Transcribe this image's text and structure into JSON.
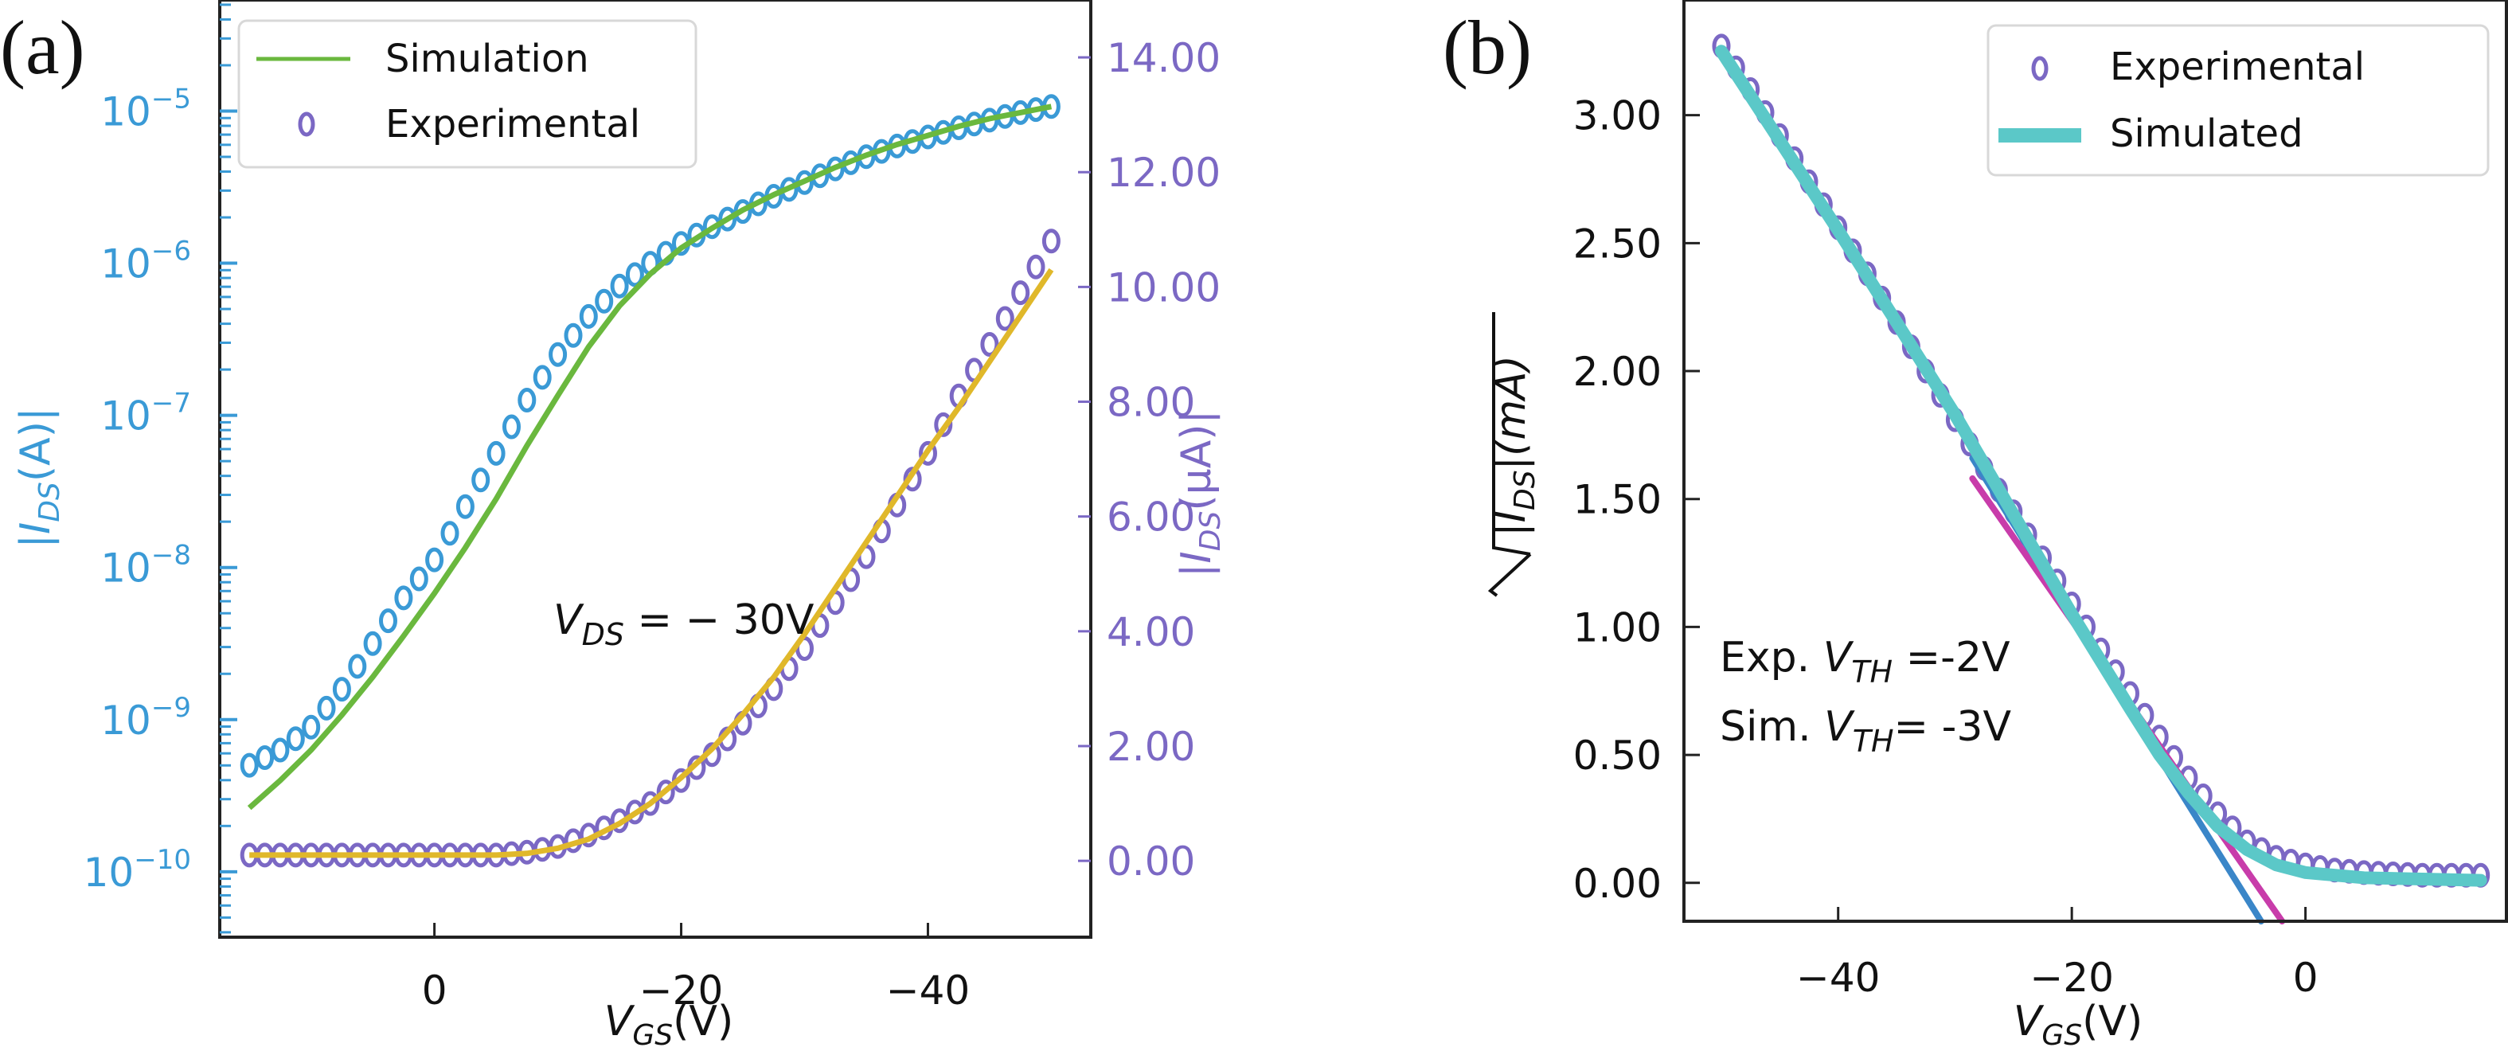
{
  "chart_data": [
    {
      "id": "a",
      "type": "line",
      "panel_label": "(a)",
      "xlabel": "V_GS(V)",
      "xlabel_main": "V",
      "xlabel_sub": "GS",
      "xlabel_unit": "(V)",
      "xlim": [
        17.4,
        -53.2
      ],
      "xticks": [
        0,
        -20,
        -40
      ],
      "xtick_labels": [
        "0",
        "−20",
        "−40"
      ],
      "y_left": {
        "label": "|I_DS(A)|",
        "label_main": "|I",
        "label_sub": "DS",
        "label_unit": "(A)|",
        "scale": "log",
        "ylim_log10": [
          -10.43,
          -4.27
        ],
        "tick_exponents": [
          -10,
          -9,
          -8,
          -7,
          -6,
          -5
        ],
        "tick_base": "10",
        "color": "#3a9ad6"
      },
      "y_right": {
        "label": "|I_DS(μA)|",
        "label_main": "|I",
        "label_sub": "DS",
        "label_unit": "(μA)|",
        "scale": "linear",
        "ylim": [
          -1.33,
          15.0
        ],
        "ticks": [
          0,
          2,
          4,
          6,
          8,
          10,
          12,
          14
        ],
        "tick_labels": [
          "0.00",
          "2.00",
          "4.00",
          "6.00",
          "8.00",
          "10.00",
          "12.00",
          "14.00"
        ],
        "color": "#7b68c4"
      },
      "legend": {
        "position": "upper-left",
        "entries": [
          {
            "label": "Simulation",
            "kind": "line",
            "color": "#6ab83e"
          },
          {
            "label": "Experimental",
            "kind": "marker",
            "color": "#7b68c4"
          }
        ]
      },
      "annotation": {
        "main": "V",
        "sub": "DS",
        "rest": " = − 30V",
        "x": 11,
        "y_log10": -8.55
      },
      "x": [
        15,
        12.5,
        10,
        7.5,
        5,
        2.5,
        0,
        -2.5,
        -5,
        -7.5,
        -10,
        -12.5,
        -15,
        -17.5,
        -20,
        -22.5,
        -25,
        -27.5,
        -30,
        -32.5,
        -35,
        -37.5,
        -40,
        -42.5,
        -45,
        -47.5,
        -50
      ],
      "series": [
        {
          "name": "Experimental (log)",
          "axis": "left",
          "kind": "marker",
          "color": "#3a9ad6",
          "log10_values": [
            -9.3,
            -9.2,
            -9.05,
            -8.8,
            -8.5,
            -8.2,
            -7.95,
            -7.6,
            -7.25,
            -6.9,
            -6.6,
            -6.35,
            -6.15,
            -6.0,
            -5.87,
            -5.76,
            -5.66,
            -5.56,
            -5.47,
            -5.38,
            -5.3,
            -5.23,
            -5.17,
            -5.11,
            -5.06,
            -5.01,
            -4.97
          ]
        },
        {
          "name": "Simulation (log)",
          "axis": "left",
          "kind": "line",
          "color": "#6ab83e",
          "log10_values": [
            -9.58,
            -9.4,
            -9.2,
            -8.97,
            -8.72,
            -8.45,
            -8.17,
            -7.87,
            -7.55,
            -7.2,
            -6.87,
            -6.55,
            -6.28,
            -6.07,
            -5.9,
            -5.77,
            -5.65,
            -5.55,
            -5.46,
            -5.37,
            -5.29,
            -5.22,
            -5.16,
            -5.1,
            -5.05,
            -5.01,
            -4.97
          ]
        },
        {
          "name": "Experimental (linear)",
          "axis": "right",
          "kind": "marker",
          "color": "#7b68c4",
          "values": [
            0.1,
            0.1,
            0.1,
            0.1,
            0.1,
            0.1,
            0.1,
            0.1,
            0.1,
            0.15,
            0.25,
            0.45,
            0.7,
            1.0,
            1.4,
            1.85,
            2.4,
            3.0,
            3.7,
            4.5,
            5.3,
            6.2,
            7.1,
            8.1,
            9.0,
            9.9,
            10.8
          ]
        },
        {
          "name": "Simulation (linear)",
          "axis": "right",
          "kind": "line",
          "color": "#e0b82a",
          "values": [
            0.1,
            0.1,
            0.1,
            0.1,
            0.1,
            0.1,
            0.1,
            0.1,
            0.1,
            0.13,
            0.22,
            0.38,
            0.65,
            1.0,
            1.45,
            1.95,
            2.55,
            3.2,
            3.95,
            4.75,
            5.55,
            6.35,
            7.15,
            7.9,
            8.7,
            9.5,
            10.3
          ]
        }
      ]
    },
    {
      "id": "b",
      "type": "line",
      "panel_label": "(b)",
      "xlabel": "V_GS(V)",
      "xlabel_main": "V",
      "xlabel_sub": "GS",
      "xlabel_unit": "(V)",
      "xlim": [
        -53.2,
        17.2
      ],
      "xticks": [
        -40,
        -20,
        0
      ],
      "xtick_labels": [
        "−40",
        "−20",
        "0"
      ],
      "ylabel": "sqrt(|I_DS|(mA))",
      "ylabel_main": "|I",
      "ylabel_sub": "DS",
      "ylabel_unit": "|(mA)",
      "ylim": [
        -0.15,
        3.45
      ],
      "yticks": [
        0,
        0.5,
        1.0,
        1.5,
        2.0,
        2.5,
        3.0
      ],
      "ytick_labels": [
        "0.00",
        "0.50",
        "1.00",
        "1.50",
        "2.00",
        "2.50",
        "3.00"
      ],
      "legend": {
        "position": "upper-right",
        "entries": [
          {
            "label": "Experimental",
            "kind": "marker",
            "color": "#7b68c4"
          },
          {
            "label": "Simulated",
            "kind": "line",
            "color": "#5bc8c8"
          }
        ]
      },
      "annotations": [
        {
          "prefix": "Exp. ",
          "main": "V",
          "sub": "TH",
          "rest": " =-2V"
        },
        {
          "prefix": "Sim. ",
          "main": "V",
          "sub": "TH",
          "rest": "= -3V"
        }
      ],
      "series": [
        {
          "name": "Experimental",
          "kind": "marker",
          "color": "#7b68c4",
          "x": [
            -50,
            -47.5,
            -45,
            -42.5,
            -40,
            -37.5,
            -35,
            -32.5,
            -30,
            -27.5,
            -25,
            -22.5,
            -20,
            -17.5,
            -15,
            -12.5,
            -10,
            -7.5,
            -5,
            -2.5,
            0,
            2.5,
            5,
            7.5,
            10,
            12.5,
            15
          ],
          "values": [
            3.27,
            3.1,
            2.92,
            2.74,
            2.56,
            2.38,
            2.19,
            2.0,
            1.81,
            1.62,
            1.45,
            1.27,
            1.09,
            0.91,
            0.74,
            0.57,
            0.41,
            0.27,
            0.16,
            0.1,
            0.07,
            0.05,
            0.04,
            0.035,
            0.03,
            0.03,
            0.03
          ]
        },
        {
          "name": "Simulated",
          "kind": "line",
          "color": "#5bc8c8",
          "x": [
            -50,
            -45,
            -40,
            -35,
            -30,
            -25,
            -20,
            -15,
            -12.5,
            -10,
            -7.5,
            -5,
            -2.5,
            0,
            5,
            10,
            15
          ],
          "values": [
            3.25,
            2.9,
            2.55,
            2.19,
            1.83,
            1.44,
            1.05,
            0.68,
            0.5,
            0.35,
            0.22,
            0.13,
            0.07,
            0.04,
            0.02,
            0.015,
            0.01
          ]
        },
        {
          "name": "Experimental linear fit",
          "kind": "fit-line",
          "color": "#3a86c8",
          "x": [
            -28.5,
            -3.8
          ],
          "values": [
            1.66,
            -0.15
          ]
        },
        {
          "name": "Simulated linear fit",
          "kind": "fit-line",
          "color": "#c83caa",
          "x": [
            -28.5,
            -2.0
          ],
          "values": [
            1.58,
            -0.15
          ]
        }
      ]
    }
  ]
}
